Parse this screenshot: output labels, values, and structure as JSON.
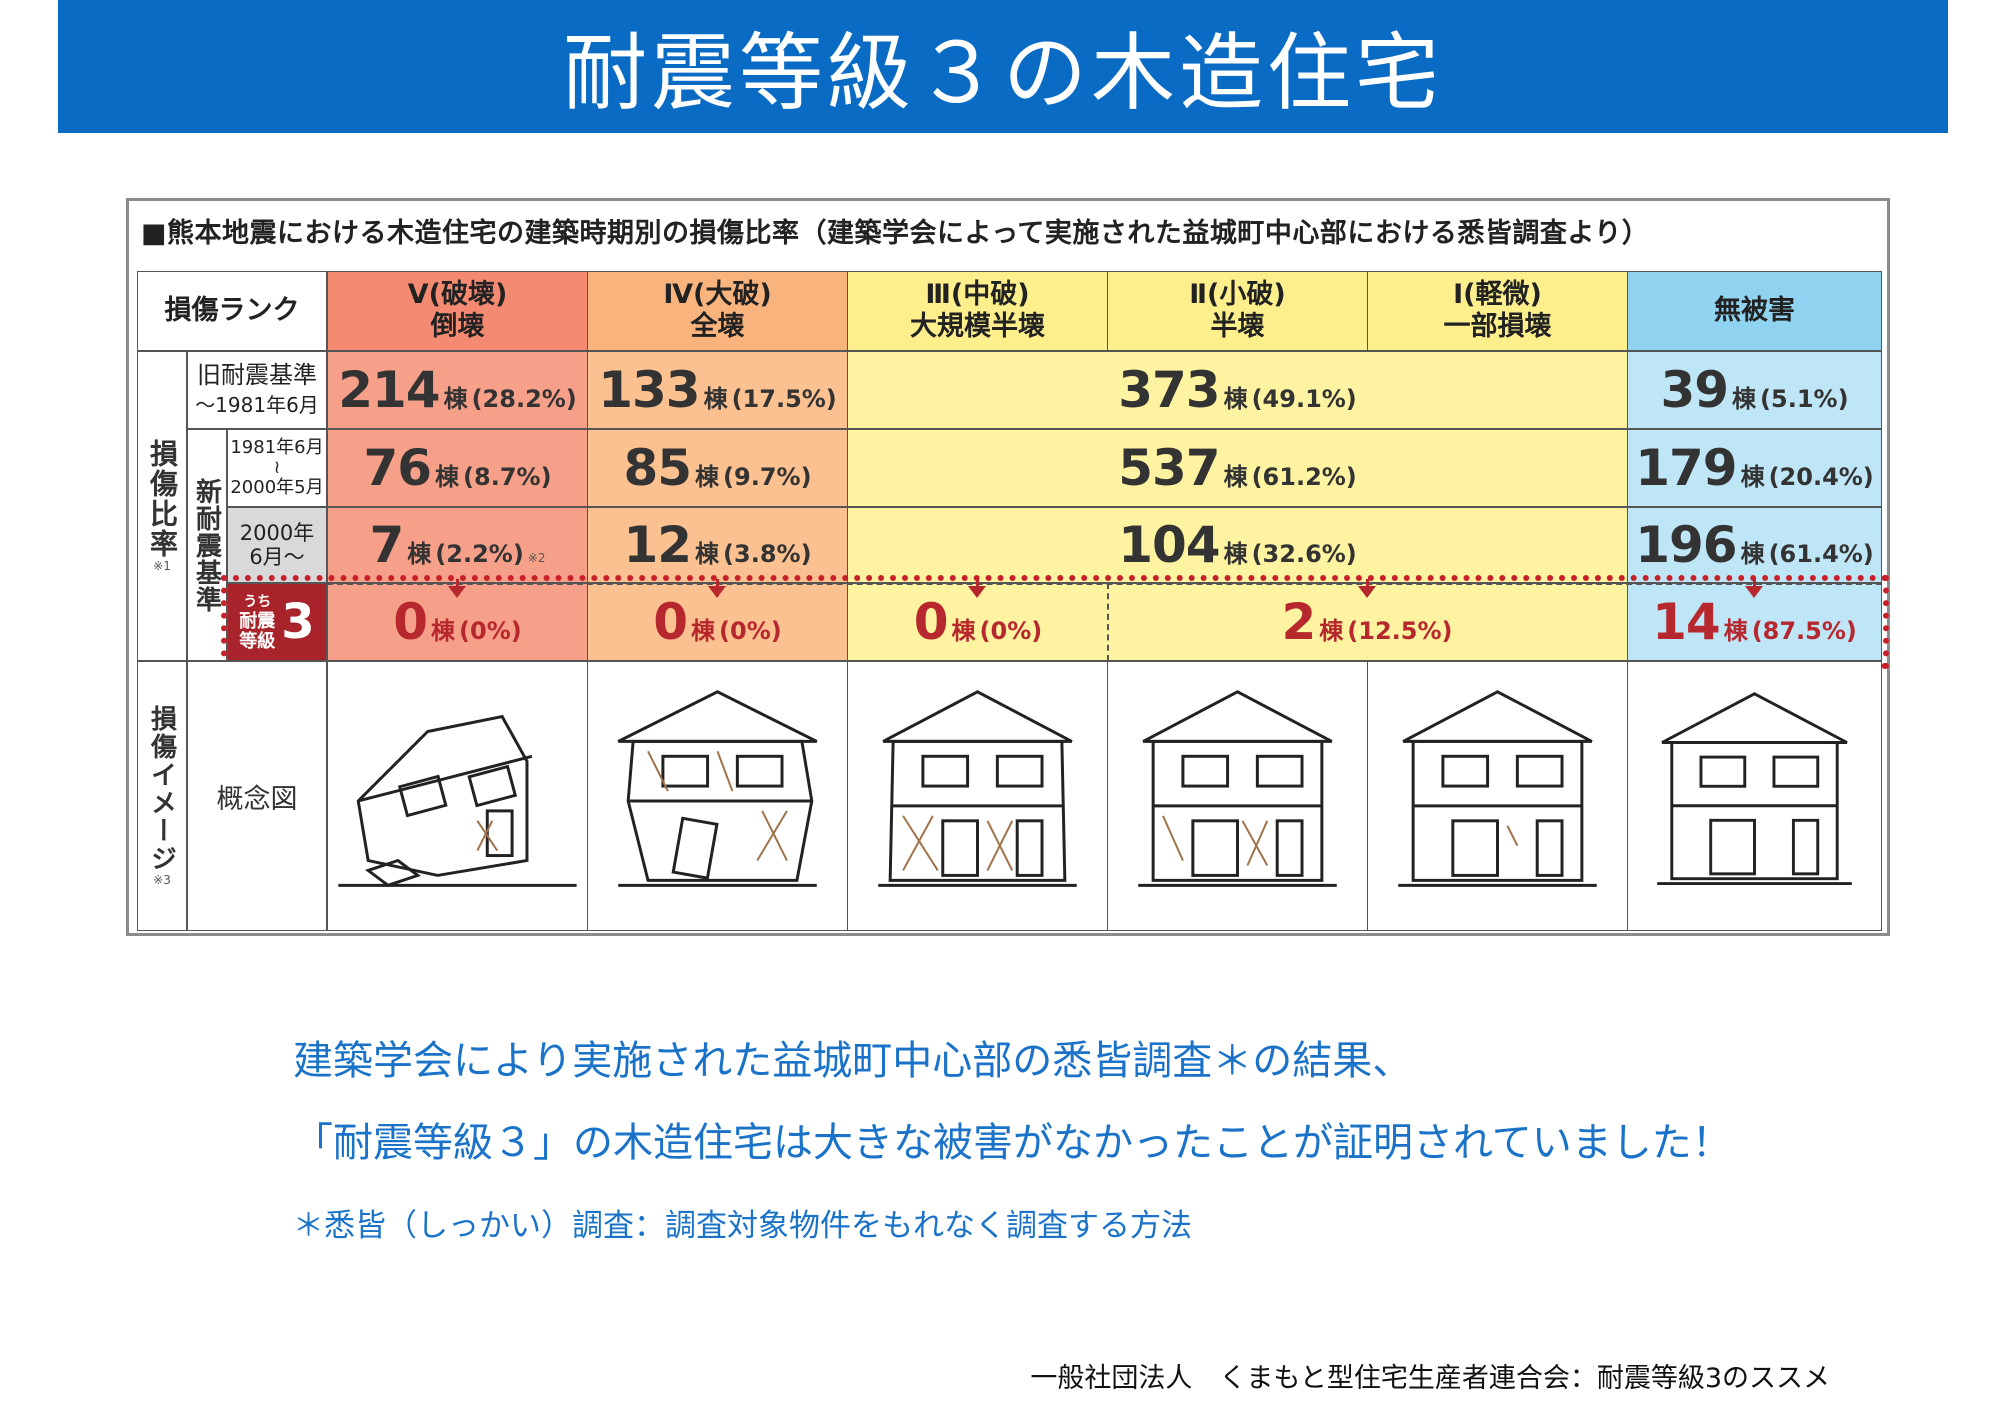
{
  "title": "耐震等級３の木造住宅",
  "figure": {
    "caption": "■熊本地震における木造住宅の建築時期別の損傷比率（建築学会によって実施された益城町中心部における悉皆調査より）",
    "header_rank": "損傷ランク",
    "columns": [
      {
        "line1": "Ⅴ(破壊)",
        "line2": "倒壊"
      },
      {
        "line1": "Ⅳ(大破)",
        "line2": "全壊"
      },
      {
        "line1": "Ⅲ(中破)",
        "line2": "大規模半壊"
      },
      {
        "line1": "Ⅱ(小破)",
        "line2": "半壊"
      },
      {
        "line1": "Ⅰ(軽微)",
        "line2": "一部損壊"
      },
      {
        "line1": "無被害",
        "line2": ""
      }
    ],
    "side_damage_ratio": "損傷比率",
    "side_damage_ratio_note": "※1",
    "side_new_standard": "新耐震基準",
    "side_damage_image": "損傷イメージ",
    "side_damage_image_note": "※3",
    "rows": {
      "old": {
        "label1": "旧耐震基準",
        "label2": "～1981年6月",
        "v": {
          "num": "214",
          "unit": "棟",
          "pct": "(28.2%)"
        },
        "iv": {
          "num": "133",
          "unit": "棟",
          "pct": "(17.5%)"
        },
        "mid": {
          "num": "373",
          "unit": "棟",
          "pct": "(49.1%)"
        },
        "none": {
          "num": "39",
          "unit": "棟",
          "pct": "(5.1%)"
        }
      },
      "new1": {
        "label1": "1981年6月",
        "label_mid": "≀",
        "label2": "2000年5月",
        "v": {
          "num": "76",
          "unit": "棟",
          "pct": "(8.7%)"
        },
        "iv": {
          "num": "85",
          "unit": "棟",
          "pct": "(9.7%)"
        },
        "mid": {
          "num": "537",
          "unit": "棟",
          "pct": "(61.2%)"
        },
        "none": {
          "num": "179",
          "unit": "棟",
          "pct": "(20.4%)"
        }
      },
      "new2": {
        "label1": "2000年",
        "label2": "6月～",
        "v": {
          "num": "7",
          "unit": "棟",
          "pct": "(2.2%)",
          "note": "※2"
        },
        "iv": {
          "num": "12",
          "unit": "棟",
          "pct": "(3.8%)"
        },
        "mid": {
          "num": "104",
          "unit": "棟",
          "pct": "(32.6%)"
        },
        "none": {
          "num": "196",
          "unit": "棟",
          "pct": "(61.4%)"
        }
      },
      "grade3": {
        "badge_small1": "うち",
        "badge_small2": "耐震",
        "badge_small3": "等級",
        "badge_big": "3",
        "v": {
          "num": "0",
          "unit": "棟",
          "pct": "(0%)"
        },
        "iv": {
          "num": "0",
          "unit": "棟",
          "pct": "(0%)"
        },
        "iii": {
          "num": "0",
          "unit": "棟",
          "pct": "(0%)"
        },
        "ii_i": {
          "num": "2",
          "unit": "棟",
          "pct": "(12.5%)"
        },
        "none": {
          "num": "14",
          "unit": "棟",
          "pct": "(87.5%)"
        }
      }
    },
    "concept_label": "概念図"
  },
  "body": {
    "line1": "建築学会により実施された益城町中心部の悉皆調査＊の結果、",
    "line2": "「耐震等級３」の木造住宅は大きな被害がなかったことが証明されていました！",
    "note": "＊悉皆（しっかい）調査：調査対象物件をもれなく調査する方法"
  },
  "credit": "一般社団法人　くまもと型住宅生産者連合会：耐震等級3のススメ",
  "colors": {
    "title_bar": "#0a6bc4",
    "body_text": "#1a73c9",
    "highlight": "#c8202a"
  }
}
